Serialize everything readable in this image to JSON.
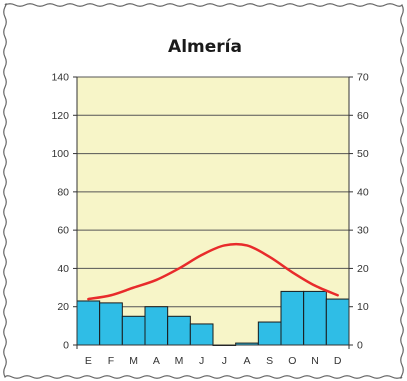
{
  "chart_data": {
    "type": "bar",
    "title": "Almería",
    "categories": [
      "E",
      "F",
      "M",
      "A",
      "M",
      "J",
      "J",
      "A",
      "S",
      "O",
      "N",
      "D"
    ],
    "series": [
      {
        "kind": "bar",
        "axis": "left",
        "values": [
          23,
          22,
          15,
          20,
          15,
          11,
          0,
          1,
          12,
          28,
          28,
          24
        ]
      },
      {
        "kind": "line",
        "axis": "right",
        "values": [
          12,
          13,
          15,
          17,
          20,
          23.5,
          26,
          26,
          23,
          19,
          15.5,
          13
        ]
      }
    ],
    "y_left": {
      "range": [
        0,
        140
      ],
      "ticks": [
        "0",
        "20",
        "40",
        "60",
        "80",
        "100",
        "120",
        "140"
      ]
    },
    "y_right": {
      "range": [
        0,
        70
      ],
      "ticks": [
        "0",
        "10",
        "20",
        "30",
        "40",
        "50",
        "60",
        "70"
      ]
    },
    "grid": true,
    "colors": {
      "plot_background": "#f7f5c8",
      "bars": "#2fbde6",
      "bar_edge": "#1a1a1a",
      "line": "#e82b2b",
      "gridlines": "#555555",
      "frame_border": "#666666"
    }
  }
}
